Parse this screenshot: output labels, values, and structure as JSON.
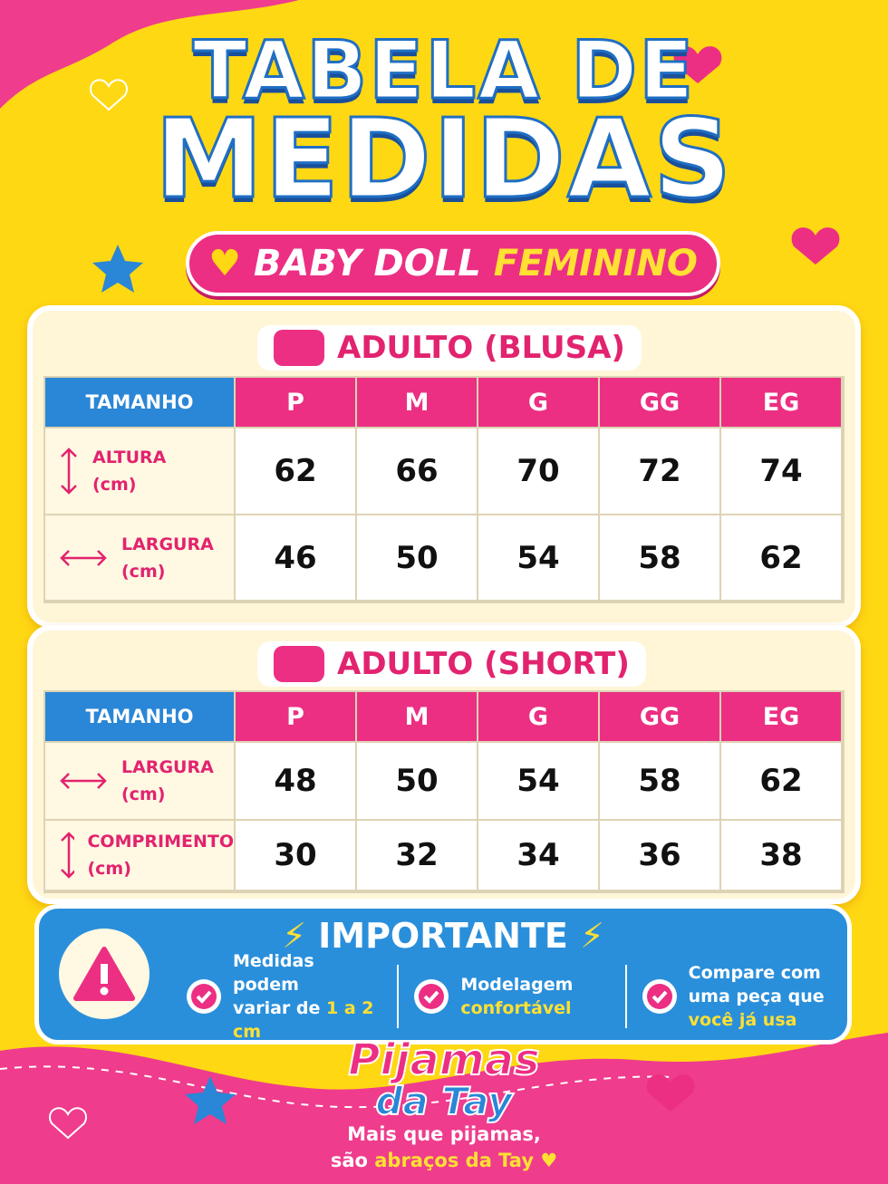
{
  "header": {
    "title_line1": "TABELA DE",
    "title_line2": "MEDIDAS",
    "subtitle": "BABY DOLL",
    "subtitle_highlight": "FEMININO"
  },
  "tables": [
    {
      "title": "ADULTO (BLUSA)",
      "header": [
        "TAMANHO",
        "P",
        "M",
        "G",
        "GG",
        "EG"
      ],
      "rows": [
        {
          "label": "ALTURA",
          "unit": "(cm)",
          "values": [
            62,
            66,
            70,
            72,
            74
          ]
        },
        {
          "label": "LARGURA",
          "unit": "(cm)",
          "values": [
            46,
            50,
            54,
            58,
            62
          ]
        }
      ]
    },
    {
      "title": "ADULTO (SHORT)",
      "header": [
        "TAMANHO",
        "P",
        "M",
        "G",
        "GG",
        "EG"
      ],
      "rows": [
        {
          "label": "LARGURA",
          "unit": "(cm)",
          "values": [
            48,
            50,
            54,
            58,
            62
          ]
        },
        {
          "label": "COMPRIMENTO",
          "unit": "(cm)",
          "values": [
            30,
            32,
            34,
            36,
            38
          ]
        }
      ]
    }
  ],
  "important": {
    "title": "IMPORTANTE",
    "items": [
      {
        "lines": [
          {
            "text": "Medidas podem"
          },
          {
            "text": "variar de",
            "highlight": "1 a 2 cm"
          }
        ]
      },
      {
        "lines": [
          {
            "text": "Modelagem"
          },
          {
            "highlight": "confortável"
          }
        ]
      },
      {
        "lines": [
          {
            "text": "Compare com"
          },
          {
            "text": "uma peça que"
          },
          {
            "highlight": "você já usa"
          }
        ]
      }
    ]
  },
  "footer": {
    "brand_line1": "Pijamas",
    "brand_line2": "da Tay",
    "tagline": [
      {
        "text": "Mais que pijamas,"
      },
      {
        "text": "são",
        "highlight": "abraços da Tay"
      }
    ]
  }
}
